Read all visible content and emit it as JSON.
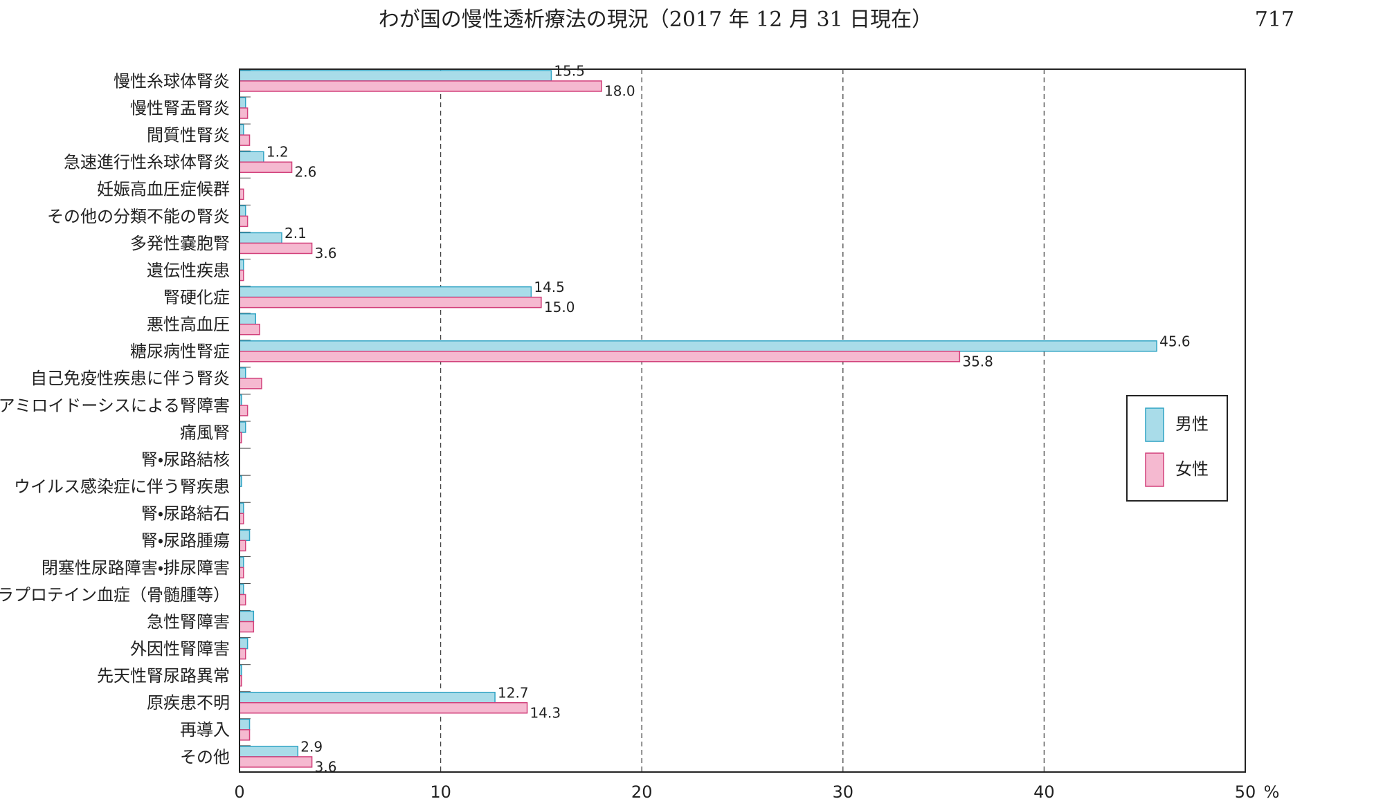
{
  "chart_data": {
    "type": "hbar",
    "title": "わが国の慢性透析療法の現況（2017 年 12 月 31 日現在）",
    "page_number": "717",
    "x_label": "%",
    "categories": [
      "慢性糸球体腎炎",
      "慢性腎盂腎炎",
      "間質性腎炎",
      "急速進行性糸球体腎炎",
      "妊娠高血圧症候群",
      "その他の分類不能の腎炎",
      "多発性嚢胞腎",
      "遺伝性疾患",
      "腎硬化症",
      "悪性高血圧",
      "糖尿病性腎症",
      "自己免疫性疾患に伴う腎炎",
      "アミロイドーシスによる腎障害",
      "痛風腎",
      "腎・尿路結核",
      "ウイルス感染症に伴う腎疾患",
      "腎・尿路結石",
      "腎・尿路腫瘍",
      "閉塞性尿路障害・排尿障害",
      "パラプロテイン血症（骨髄腫等）",
      "急性腎障害",
      "外因性腎障害",
      "先天性腎尿路異常",
      "原疾患不明",
      "再導入",
      "その他"
    ],
    "series": [
      {
        "name": "男性",
        "color": "#a9dce9",
        "stroke": "#2fa3c4",
        "values": [
          15.5,
          0.3,
          0.2,
          1.2,
          0.0,
          0.3,
          2.1,
          0.2,
          14.5,
          0.8,
          45.6,
          0.3,
          0.1,
          0.3,
          0.0,
          0.1,
          0.2,
          0.5,
          0.2,
          0.2,
          0.7,
          0.4,
          0.1,
          12.7,
          0.5,
          2.9
        ],
        "value_labels": [
          "15.5",
          null,
          null,
          "1.2",
          null,
          null,
          "2.1",
          null,
          "14.5",
          null,
          "45.6",
          null,
          null,
          null,
          null,
          null,
          null,
          null,
          null,
          null,
          null,
          null,
          null,
          "12.7",
          null,
          "2.9"
        ]
      },
      {
        "name": "女性",
        "color": "#f5b9d0",
        "stroke": "#d2417b",
        "values": [
          18.0,
          0.4,
          0.5,
          2.6,
          0.2,
          0.4,
          3.6,
          0.2,
          15.0,
          1.0,
          35.8,
          1.1,
          0.4,
          0.1,
          0.0,
          0.0,
          0.2,
          0.3,
          0.2,
          0.3,
          0.7,
          0.3,
          0.1,
          14.3,
          0.5,
          3.6
        ],
        "value_labels": [
          "18.0",
          null,
          null,
          "2.6",
          null,
          null,
          "3.6",
          null,
          "15.0",
          null,
          "35.8",
          null,
          null,
          null,
          null,
          null,
          null,
          null,
          null,
          null,
          null,
          null,
          null,
          "14.3",
          null,
          "3.6"
        ]
      }
    ],
    "xlim": [
      0,
      50
    ],
    "xticks": [
      0,
      10,
      20,
      30,
      40,
      50
    ],
    "grid": true,
    "legend": "right"
  }
}
